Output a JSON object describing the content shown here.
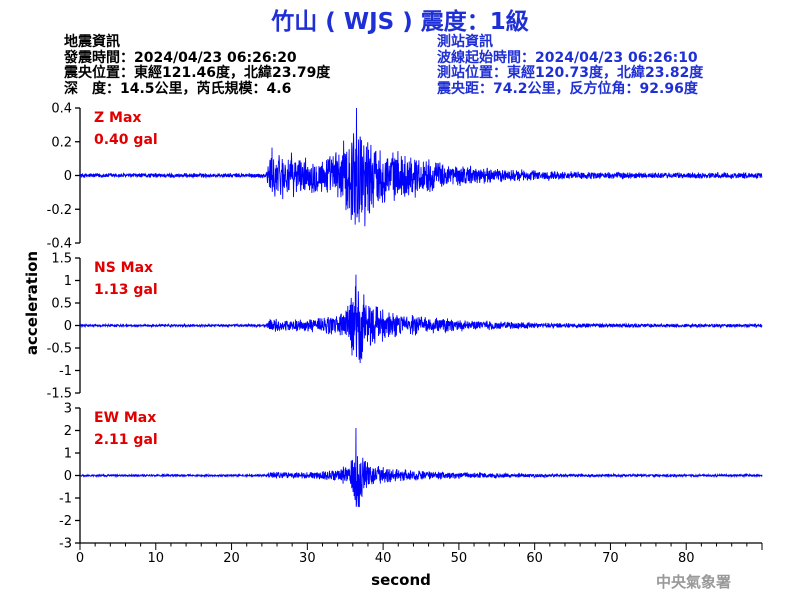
{
  "header": {
    "title": "竹山 ( WJS ) 震度：1級"
  },
  "earthquake_info": {
    "heading": "地震資訊",
    "origin_time": "發震時間：2024/04/23 06:26:20",
    "epicenter": "震央位置：東經121.46度，北緯23.79度",
    "depth_magnitude": "深　度：14.5公里，芮氏規模：4.6"
  },
  "station_info": {
    "heading": "測站資訊",
    "wave_start": "波線起始時間：2024/04/23 06:26:10",
    "location": "測站位置：東經120.73度，北緯23.82度",
    "distance": "震央距：74.2公里，反方位角：92.96度"
  },
  "credit": "中央氣象署",
  "colors": {
    "trace": "#0000ff",
    "title": "#1f2fd6",
    "station_text": "#1f2fd6",
    "max_label": "#e00000",
    "axis": "#000000"
  },
  "chart_data": {
    "type": "line",
    "xlabel": "second",
    "ylabel": "acceleration",
    "xlim": [
      0,
      90
    ],
    "xticks": [
      0,
      10,
      20,
      30,
      40,
      50,
      60,
      70,
      80
    ],
    "x_tick_labels": [
      "0",
      "10",
      "20",
      "30",
      "40",
      "50",
      "60",
      "70",
      "80"
    ],
    "grid": false,
    "panels": [
      {
        "name": "Z",
        "label": "Z Max",
        "max_text": "0.40 gal",
        "max_gal": 0.4,
        "ylim": [
          -0.4,
          0.4
        ],
        "yticks": [
          0.4,
          0.2,
          0,
          -0.2,
          -0.4
        ],
        "y_tick_labels": [
          "0.4",
          "0.2",
          "0",
          "-0.2",
          "-0.4"
        ],
        "envelope": [
          [
            0,
            0.015
          ],
          [
            24.5,
            0.015
          ],
          [
            25.2,
            0.17
          ],
          [
            27,
            0.15
          ],
          [
            30,
            0.11
          ],
          [
            33,
            0.13
          ],
          [
            35,
            0.23
          ],
          [
            36.5,
            0.4
          ],
          [
            37.5,
            0.32
          ],
          [
            39,
            0.2
          ],
          [
            41,
            0.16
          ],
          [
            44,
            0.14
          ],
          [
            48,
            0.08
          ],
          [
            55,
            0.045
          ],
          [
            65,
            0.025
          ],
          [
            75,
            0.02
          ],
          [
            90,
            0.02
          ]
        ]
      },
      {
        "name": "NS",
        "label": "NS Max",
        "max_text": "1.13 gal",
        "max_gal": 1.13,
        "ylim": [
          -1.5,
          1.5
        ],
        "yticks": [
          1.5,
          1,
          0.5,
          0,
          -0.5,
          -1,
          -1.5
        ],
        "y_tick_labels": [
          "1.5",
          "1",
          "0.5",
          "0",
          "-0.5",
          "-1",
          "-1.5"
        ],
        "envelope": [
          [
            0,
            0.03
          ],
          [
            24.5,
            0.03
          ],
          [
            25.2,
            0.16
          ],
          [
            30,
            0.14
          ],
          [
            34,
            0.3
          ],
          [
            35.5,
            0.55
          ],
          [
            36.4,
            1.13
          ],
          [
            37.5,
            0.7
          ],
          [
            39.5,
            0.42
          ],
          [
            42,
            0.3
          ],
          [
            46,
            0.2
          ],
          [
            52,
            0.12
          ],
          [
            60,
            0.07
          ],
          [
            70,
            0.05
          ],
          [
            90,
            0.04
          ]
        ]
      },
      {
        "name": "EW",
        "label": "EW Max",
        "max_text": "2.11 gal",
        "max_gal": 2.11,
        "ylim": [
          -3,
          3
        ],
        "yticks": [
          3,
          2,
          1,
          0,
          -1,
          -2,
          -3
        ],
        "y_tick_labels": [
          "3",
          "2",
          "1",
          "0",
          "-1",
          "-2",
          "-3"
        ],
        "envelope": [
          [
            0,
            0.05
          ],
          [
            24.5,
            0.05
          ],
          [
            25.2,
            0.18
          ],
          [
            30,
            0.16
          ],
          [
            34,
            0.3
          ],
          [
            35.6,
            0.6
          ],
          [
            36.4,
            2.11
          ],
          [
            37.2,
            1.2
          ],
          [
            38.5,
            0.55
          ],
          [
            41,
            0.35
          ],
          [
            46,
            0.2
          ],
          [
            53,
            0.12
          ],
          [
            62,
            0.08
          ],
          [
            75,
            0.06
          ],
          [
            90,
            0.05
          ]
        ]
      }
    ]
  }
}
